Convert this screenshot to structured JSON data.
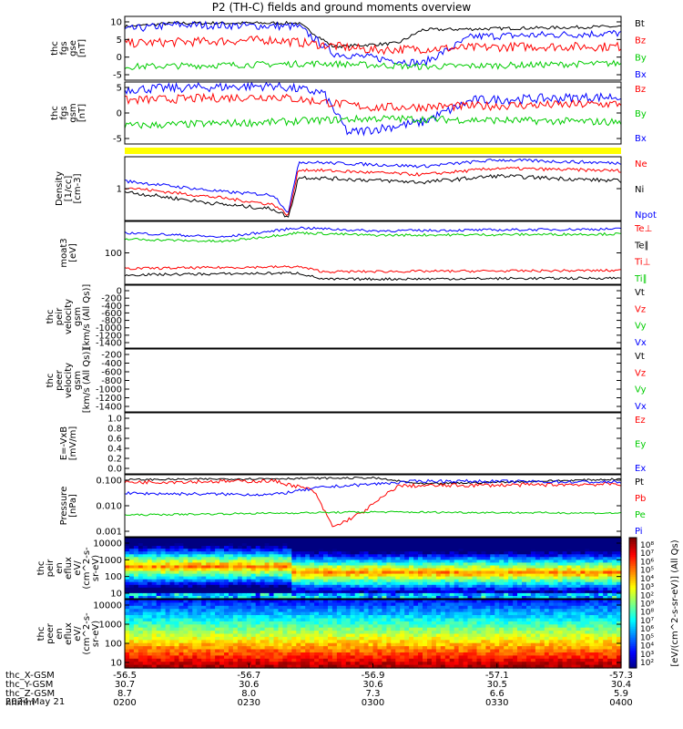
{
  "title": "P2 (TH-C) fields and ground moments overview",
  "panels": [
    {
      "id": "fgs-gse",
      "ylabel": [
        "thc",
        "fgs",
        "gse",
        "[nT]"
      ],
      "ticks": [
        "10",
        "5",
        "0",
        "-5"
      ],
      "legend": [
        {
          "text": "Bt",
          "color": "#000000"
        },
        {
          "text": "Bz",
          "color": "#ff0000"
        },
        {
          "text": "By",
          "color": "#00cc00"
        },
        {
          "text": "Bx",
          "color": "#0000ff"
        }
      ]
    },
    {
      "id": "fgs-gsm",
      "ylabel": [
        "thc",
        "fgs",
        "gsm",
        "[nT]"
      ],
      "ticks": [
        "5",
        "0",
        "-5"
      ],
      "legend": [
        {
          "text": "Bz",
          "color": "#ff0000"
        },
        {
          "text": "By",
          "color": "#00cc00"
        },
        {
          "text": "Bx",
          "color": "#0000ff"
        }
      ]
    },
    {
      "id": "density",
      "ylabel": [
        "Density",
        "[1/cc]",
        "[cm-3]"
      ],
      "ticks": [
        "1"
      ],
      "legend": [
        {
          "text": "Ne",
          "color": "#ff0000"
        },
        {
          "text": "Ni",
          "color": "#000000"
        },
        {
          "text": "Npot",
          "color": "#0000ff"
        }
      ]
    },
    {
      "id": "temperature",
      "ylabel": [
        "moat3",
        "[eV]"
      ],
      "ticks": [
        "100"
      ],
      "legend": [
        {
          "text": "Te⊥",
          "color": "#ff0000"
        },
        {
          "text": "Te∥",
          "color": "#000000"
        },
        {
          "text": "Ti⊥",
          "color": "#ff0000"
        },
        {
          "text": "Ti∥",
          "color": "#00cc00"
        }
      ]
    },
    {
      "id": "peir-velocity",
      "ylabel": [
        "thc",
        "peir",
        "velocity",
        "gsm",
        "[km/s (All Qs)]"
      ],
      "ticks": [
        "0",
        "-200",
        "-400",
        "-600",
        "-800",
        "-1000",
        "-1200",
        "-1400"
      ],
      "legend": [
        {
          "text": "Vt",
          "color": "#000000"
        },
        {
          "text": "Vz",
          "color": "#ff0000"
        },
        {
          "text": "Vy",
          "color": "#00cc00"
        },
        {
          "text": "Vx",
          "color": "#0000ff"
        }
      ]
    },
    {
      "id": "peer-velocity",
      "ylabel": [
        "thc",
        "peer",
        "velocity",
        "gsm",
        "[km/s (All Qs)]"
      ],
      "ticks": [
        "-200",
        "-400",
        "-600",
        "-800",
        "-1000",
        "-1200",
        "-1400"
      ],
      "legend": [
        {
          "text": "Vt",
          "color": "#000000"
        },
        {
          "text": "Vz",
          "color": "#ff0000"
        },
        {
          "text": "Vy",
          "color": "#00cc00"
        },
        {
          "text": "Vx",
          "color": "#0000ff"
        }
      ]
    },
    {
      "id": "efield",
      "ylabel": [
        "E=-VxB",
        "[mV/m]"
      ],
      "ticks": [
        "1.0",
        "0.8",
        "0.6",
        "0.4",
        "0.2",
        "0.0"
      ],
      "legend": [
        {
          "text": "Ez",
          "color": "#ff0000"
        },
        {
          "text": "Ey",
          "color": "#00cc00"
        },
        {
          "text": "Ex",
          "color": "#0000ff"
        }
      ]
    },
    {
      "id": "pressure",
      "ylabel": [
        "Pressure",
        "[nPa]"
      ],
      "ticks": [
        "0.100",
        "0.010",
        "0.001"
      ],
      "legend": [
        {
          "text": "Pt",
          "color": "#000000"
        },
        {
          "text": "Pb",
          "color": "#ff0000"
        },
        {
          "text": "Pe",
          "color": "#00cc00"
        },
        {
          "text": "Pi",
          "color": "#0000ff"
        }
      ]
    },
    {
      "id": "peir-spec",
      "ylabel": [
        "thc",
        "peir",
        "en",
        "eflux",
        "eV/",
        "(cm^2-s-",
        "sr-eV)"
      ],
      "ticks": [
        "10000",
        "1000",
        "100",
        "10"
      ],
      "legend": []
    },
    {
      "id": "peer-spec",
      "ylabel": [
        "thc",
        "peer",
        "en",
        "eflux",
        "eV/",
        "(cm^2-s-",
        "sr-eV)"
      ],
      "ticks": [
        "10000",
        "1000",
        "100",
        "10"
      ],
      "legend": []
    }
  ],
  "colorbar": {
    "ticks": [
      "10⁸",
      "10⁷",
      "10⁶",
      "10⁵",
      "10⁴",
      "10³",
      "10²",
      "10⁹",
      "10⁸",
      "10⁷",
      "10⁶",
      "10⁵",
      "10⁴",
      "10³",
      "10²"
    ],
    "label": "[eV/(cm^2-s-sr-eV)] (All Qs)"
  },
  "xaxis": {
    "ticks": [
      "-56.5",
      "-56.7",
      "-56.9",
      "-57.1",
      "-57.3"
    ],
    "rows": [
      {
        "label": "thc_X-GSM",
        "values": [
          "30.7",
          "30.6",
          "30.6",
          "30.5",
          "30.4"
        ]
      },
      {
        "label": "thc_Y-GSM",
        "values": [
          "8.7",
          "8.0",
          "7.3",
          "6.6",
          "5.9"
        ]
      },
      {
        "label": "thc_Z-GSM",
        "values": [
          "0200",
          "0230",
          "0300",
          "0330",
          "0400"
        ]
      },
      {
        "label": "hhmm",
        "values": []
      }
    ],
    "date": "2024 May 21"
  },
  "chart_data": {
    "type": "line",
    "title": "P2 (TH-C) fields and ground moments overview",
    "x_time_labels": [
      "0200",
      "0230",
      "0300",
      "0330",
      "0400"
    ],
    "series": [
      {
        "panel": "fgs-gse",
        "name": "Bt",
        "start_values": [
          9,
          10,
          11,
          9.5
        ],
        "mid": 2,
        "end": 9
      },
      {
        "panel": "fgs-gse",
        "name": "Bx",
        "start_values": [
          8,
          9,
          10,
          9
        ],
        "mid": 0,
        "end": 6
      },
      {
        "panel": "fgs-gse",
        "name": "Bz",
        "start_values": [
          3,
          4,
          5,
          4
        ],
        "mid": 2,
        "end": 3
      },
      {
        "panel": "fgs-gse",
        "name": "By",
        "start_values": [
          -3,
          -2,
          -2,
          -3
        ],
        "mid": -3,
        "end": -2
      },
      {
        "panel": "fgs-gsm",
        "name": "Bz",
        "start_values": [
          4,
          5,
          5,
          4
        ],
        "mid": 2,
        "end": 3
      },
      {
        "panel": "fgs-gsm",
        "name": "By",
        "start_values": [
          -3,
          -2,
          -2,
          -3
        ],
        "mid": -1,
        "end": -2
      },
      {
        "panel": "fgs-gsm",
        "name": "Bx",
        "start_values": [
          7,
          8,
          9,
          8
        ],
        "mid": -5,
        "end": 5
      },
      {
        "panel": "density",
        "name": "Npot",
        "values": [
          0.8,
          0.6,
          0.3,
          2.5,
          2.2,
          2.4,
          2.6
        ]
      },
      {
        "panel": "density",
        "name": "Ne",
        "values": [
          0.5,
          0.4,
          0.2,
          1.6,
          1.8,
          1.5,
          1.7
        ]
      },
      {
        "panel": "density",
        "name": "Ni",
        "values": [
          0.4,
          0.3,
          0.15,
          1.2,
          1.3,
          1.0,
          1.2
        ]
      },
      {
        "panel": "temperature",
        "name": "Te⊥",
        "values": [
          150,
          140,
          160,
          150,
          145,
          150,
          155
        ]
      },
      {
        "panel": "temperature",
        "name": "Ti∥",
        "values": [
          120,
          110,
          130,
          125,
          120,
          125,
          130
        ]
      },
      {
        "panel": "temperature",
        "name": "Te∥",
        "values": [
          40,
          38,
          40,
          35,
          34,
          35,
          36
        ]
      },
      {
        "panel": "pressure",
        "name": "Pt",
        "values": [
          0.08,
          0.09,
          0.1,
          0.07,
          0.09,
          0.08,
          0.09
        ]
      },
      {
        "panel": "pressure",
        "name": "Pb",
        "values": [
          0.06,
          0.07,
          0.07,
          0.002,
          0.05,
          0.06,
          0.06
        ]
      },
      {
        "panel": "pressure",
        "name": "Pi",
        "values": [
          0.02,
          0.02,
          0.03,
          0.06,
          0.07,
          0.06,
          0.07
        ]
      },
      {
        "panel": "pressure",
        "name": "Pe",
        "values": [
          0.004,
          0.004,
          0.004,
          0.003,
          0.003,
          0.003,
          0.003
        ]
      }
    ]
  }
}
